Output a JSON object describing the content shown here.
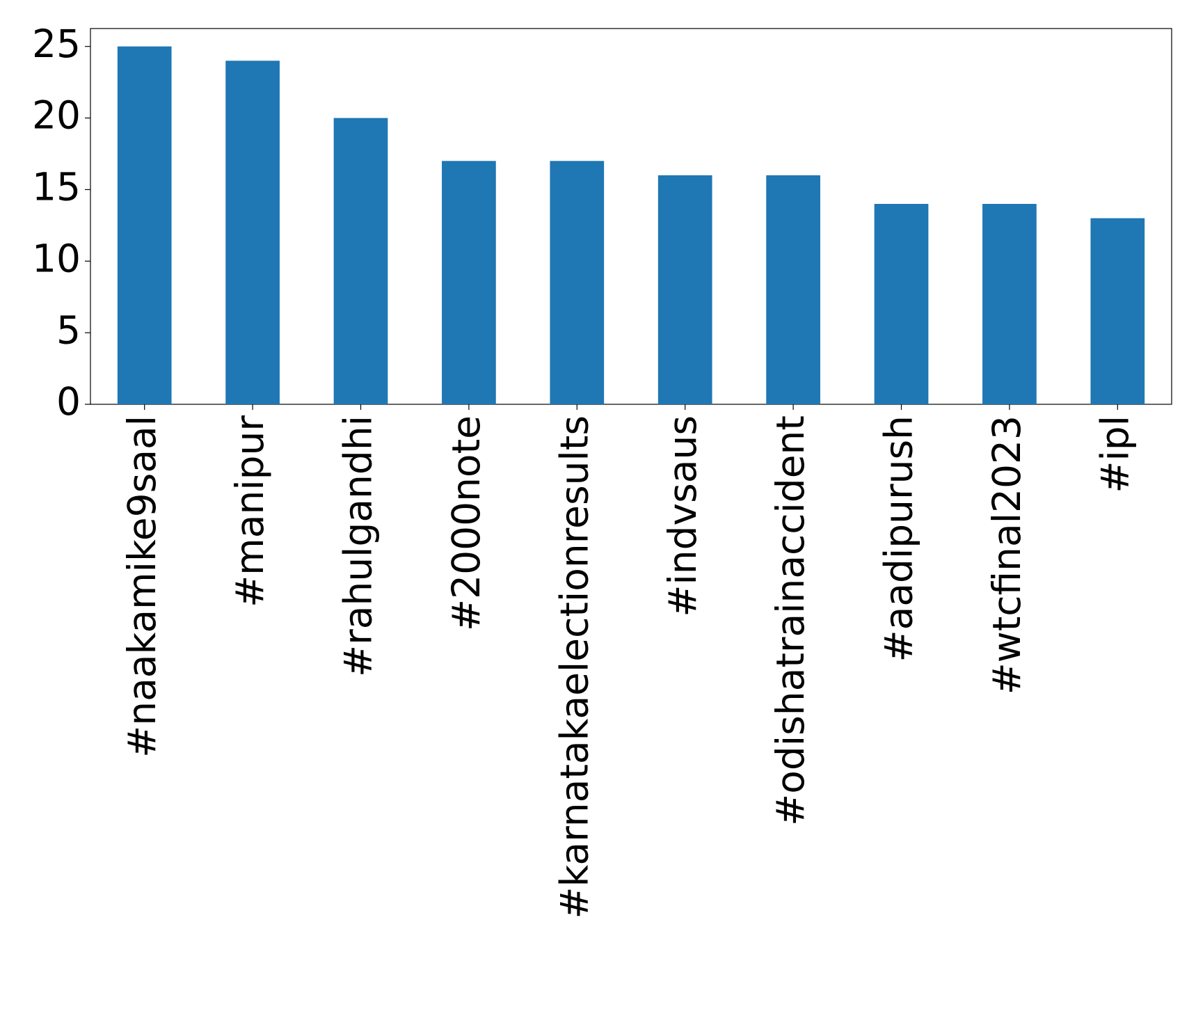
{
  "chart_data": {
    "type": "bar",
    "categories": [
      "#naakamike9saal",
      "#manipur",
      "#rahulgandhi",
      "#2000note",
      "#karnatakaelectionresults",
      "#indvsaus",
      "#odishatrainaccident",
      "#aadipurush",
      "#wtcfinal2023",
      "#ipl"
    ],
    "values": [
      25,
      24,
      20,
      17,
      17,
      16,
      16,
      14,
      14,
      13
    ],
    "color": "#1f77b4",
    "ylim": [
      0,
      26.25
    ],
    "yticks": [
      0,
      5,
      10,
      15,
      20,
      25
    ],
    "grid": false
  }
}
